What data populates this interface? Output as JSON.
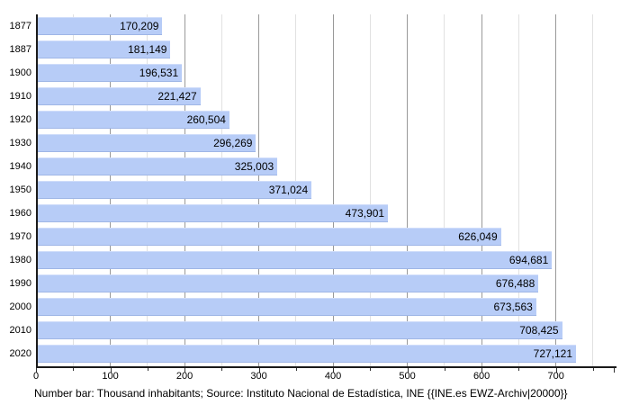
{
  "chart_data": {
    "type": "bar",
    "orientation": "horizontal",
    "title": "",
    "xlabel": "",
    "ylabel": "",
    "legend": null,
    "grid": "on",
    "categories": [
      "1877",
      "1887",
      "1900",
      "1910",
      "1920",
      "1930",
      "1940",
      "1950",
      "1960",
      "1970",
      "1980",
      "1990",
      "2000",
      "2010",
      "2020"
    ],
    "values": [
      170209,
      181149,
      196531,
      221427,
      260504,
      296269,
      325003,
      371024,
      473901,
      626049,
      694681,
      676488,
      673563,
      708425,
      727121
    ],
    "value_labels": [
      "170,209",
      "181,149",
      "196,531",
      "221,427",
      "260,504",
      "296,269",
      "325,003",
      "371,024",
      "473,901",
      "626,049",
      "694,681",
      "676,488",
      "673,563",
      "708,425",
      "727,121"
    ],
    "x_axis": {
      "unit": "thousand inhabitants",
      "tick_labels": [
        "0",
        "100",
        "200",
        "300",
        "400",
        "500",
        "600",
        "700"
      ],
      "major_ticks_units": [
        0,
        100,
        200,
        300,
        400,
        500,
        600,
        700
      ],
      "minor_ticks_units": [
        50,
        150,
        250,
        350,
        450,
        550,
        650,
        750
      ],
      "axis_end_units": 778,
      "max_units": 761,
      "xlim": [
        0,
        761
      ]
    },
    "caption": "Number bar: Thousand inhabitants; Source: Instituto Nacional de Estadística, INE {{INE.es EWZ-Archiv|20000}}",
    "colors": {
      "bar_fill": "#b7ccf7",
      "bar_edge_bottom": "#9fb6e6",
      "bar_edge_top": "#cfdcfa",
      "grid_major": "#999999",
      "grid_minor": "#e1e1e1",
      "axis": "#1a1a1a",
      "text": "#000000",
      "background": "#ffffff"
    }
  }
}
